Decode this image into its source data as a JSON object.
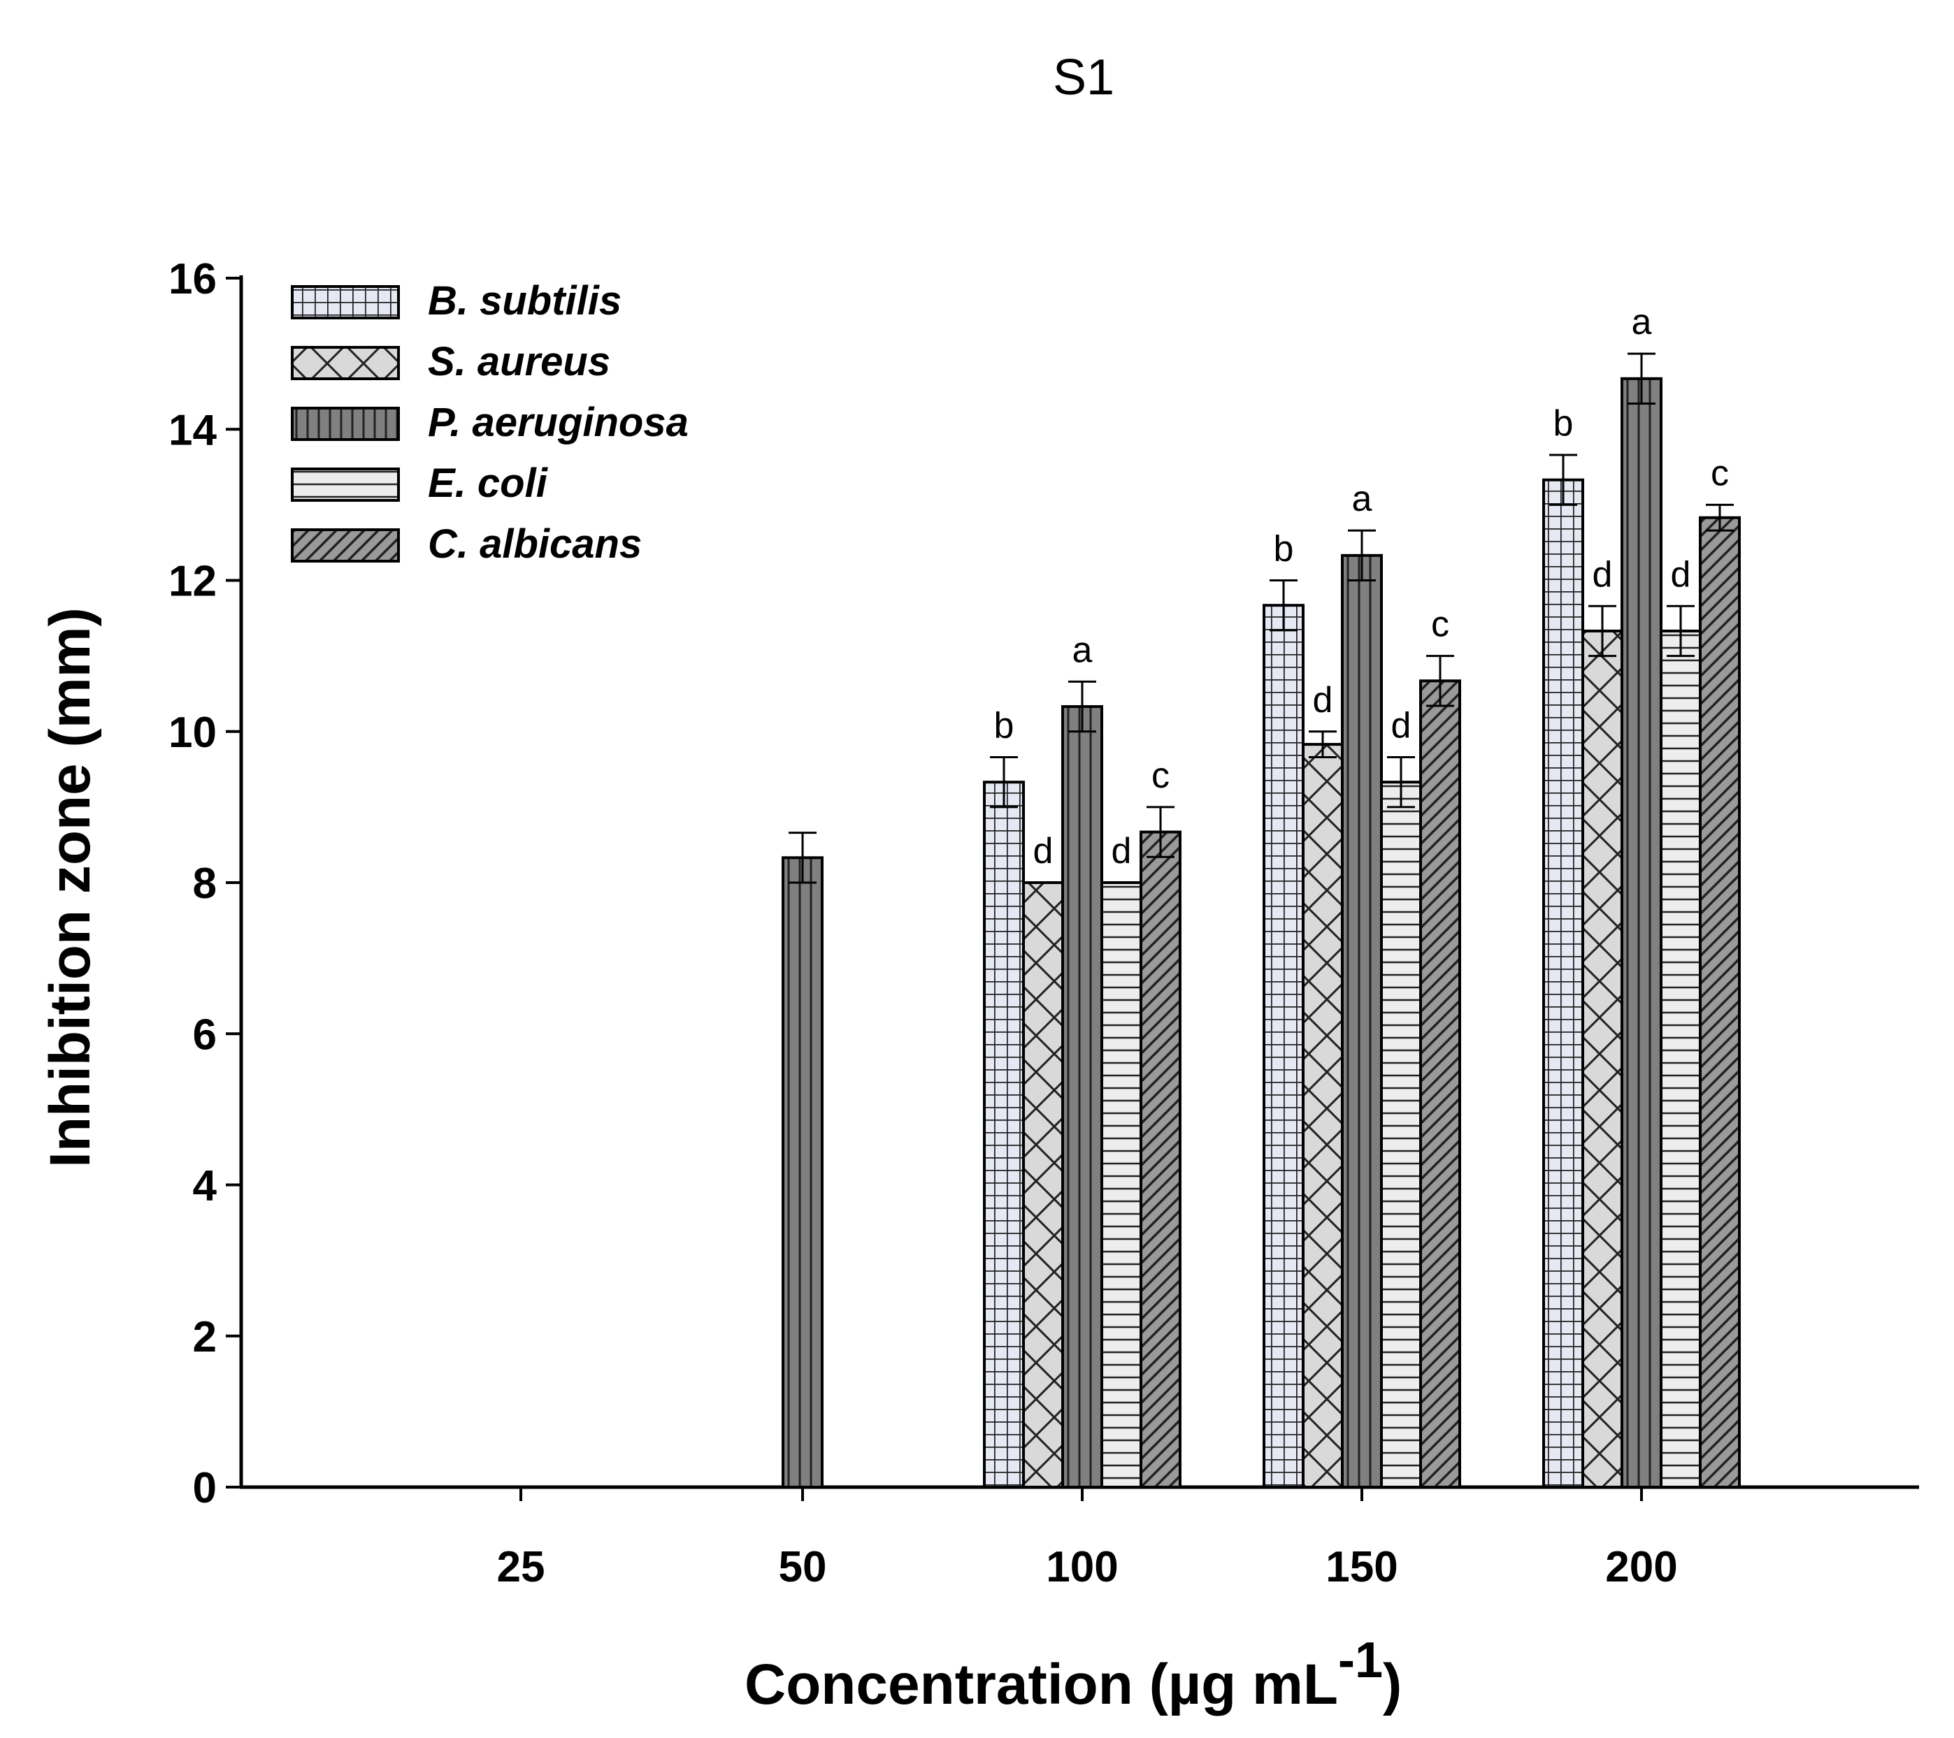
{
  "chart_data": {
    "type": "bar",
    "title": "S1",
    "xlabel": "Concentration (µg mL",
    "xlabel_superscript": "-1",
    "xlabel_close": ")",
    "ylabel": "Inhibition zone (mm)",
    "ylim": [
      0,
      16
    ],
    "yticks": [
      0,
      2,
      4,
      6,
      8,
      10,
      12,
      14,
      16
    ],
    "categories": [
      "25",
      "50",
      "100",
      "150",
      "200"
    ],
    "legend_position": "top-left",
    "series": [
      {
        "name": "B. subtilis",
        "pattern": "grid",
        "fill": "#e6e8f4",
        "values": [
          0,
          0,
          9.33,
          11.67,
          13.33
        ],
        "errors": [
          0,
          0,
          0.33,
          0.33,
          0.33
        ],
        "labels": [
          "",
          "",
          "b",
          "b",
          "b"
        ]
      },
      {
        "name": "S. aureus",
        "pattern": "crosshatch",
        "fill": "#d9d9d9",
        "values": [
          0,
          0,
          8.0,
          9.83,
          11.33
        ],
        "errors": [
          0,
          0,
          0,
          0.17,
          0.33
        ],
        "labels": [
          "",
          "",
          "d",
          "d",
          "d"
        ]
      },
      {
        "name": "P. aeruginosa",
        "pattern": "vertical",
        "fill": "#808080",
        "values": [
          0,
          8.33,
          10.33,
          12.33,
          14.67
        ],
        "errors": [
          0,
          0.33,
          0.33,
          0.33,
          0.33
        ],
        "labels": [
          "",
          "",
          "a",
          "a",
          "a"
        ]
      },
      {
        "name": "E. coli",
        "pattern": "horizontal",
        "fill": "#ededed",
        "values": [
          0,
          0,
          8.0,
          9.33,
          11.33
        ],
        "errors": [
          0,
          0,
          0,
          0.33,
          0.33
        ],
        "labels": [
          "",
          "",
          "d",
          "d",
          "d"
        ]
      },
      {
        "name": "C. albicans",
        "pattern": "diagonal",
        "fill": "#9a9a9a",
        "values": [
          0,
          0,
          8.67,
          10.67,
          12.83
        ],
        "errors": [
          0,
          0,
          0.33,
          0.33,
          0.17
        ],
        "labels": [
          "",
          "",
          "c",
          "c",
          "c"
        ]
      }
    ]
  }
}
